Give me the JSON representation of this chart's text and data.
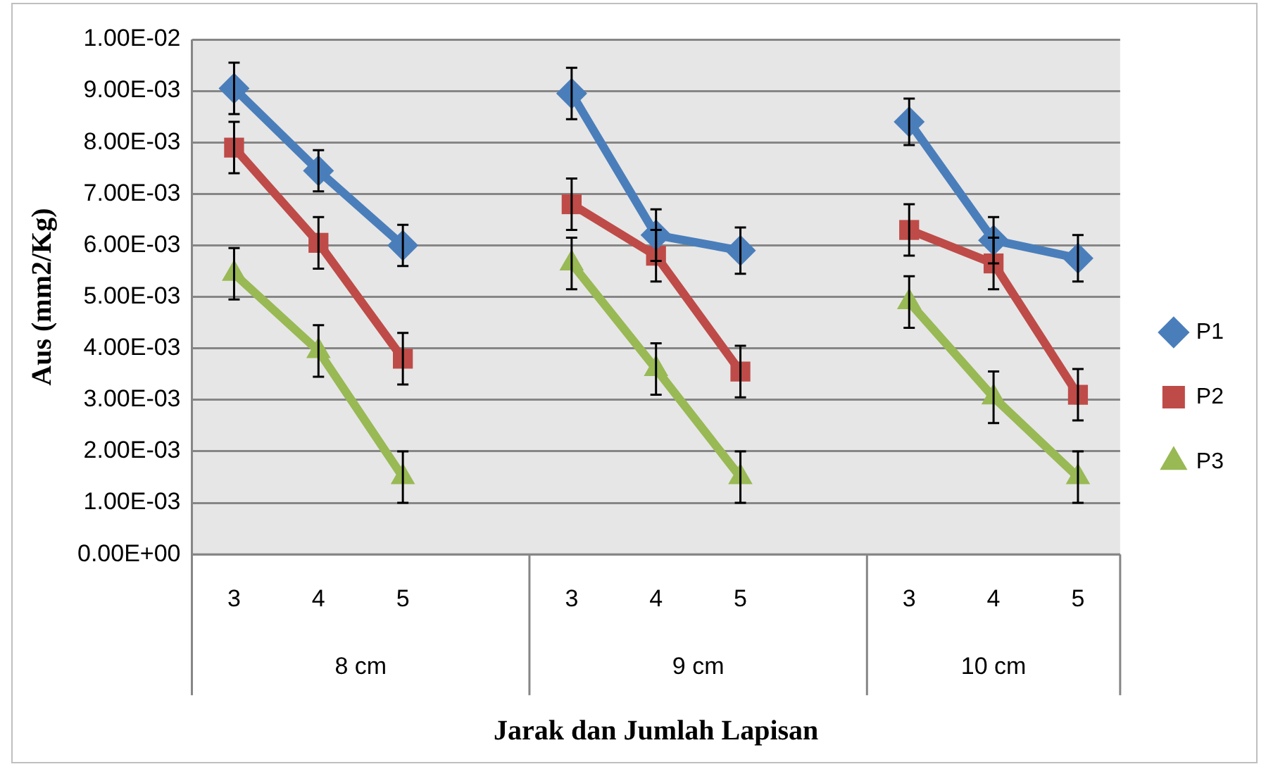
{
  "chart_data": {
    "type": "line",
    "xlabel": "Jarak dan Jumlah Lapisan",
    "ylabel": "Aus (mm2/Kg)",
    "categories": [
      "3",
      "4",
      "5",
      null,
      "3",
      "4",
      "5",
      null,
      "3",
      "4",
      "5"
    ],
    "annotations": [
      "8 cm",
      "9 cm",
      "10 cm"
    ],
    "series": [
      {
        "name": "P1",
        "color": "#4a7ebb",
        "marker": "diamond",
        "values": [
          0.00905,
          0.00745,
          0.006,
          null,
          0.00895,
          0.0062,
          0.0059,
          null,
          0.0084,
          0.0061,
          0.00575
        ],
        "errors": [
          0.0005,
          0.0004,
          0.0004,
          null,
          0.0005,
          0.0005,
          0.00045,
          null,
          0.00045,
          0.00045,
          0.00045
        ]
      },
      {
        "name": "P2",
        "color": "#be4b48",
        "marker": "square",
        "values": [
          0.0079,
          0.00605,
          0.0038,
          null,
          0.0068,
          0.0058,
          0.00355,
          null,
          0.0063,
          0.00565,
          0.0031
        ],
        "errors": [
          0.0005,
          0.0005,
          0.0005,
          null,
          0.0005,
          0.0005,
          0.0005,
          null,
          0.0005,
          0.0005,
          0.0005
        ]
      },
      {
        "name": "P3",
        "color": "#98b954",
        "marker": "triangle",
        "values": [
          0.00545,
          0.00395,
          0.0015,
          null,
          0.00565,
          0.0036,
          0.0015,
          null,
          0.0049,
          0.00305,
          0.0015
        ],
        "errors": [
          0.0005,
          0.0005,
          0.0005,
          null,
          0.0005,
          0.0005,
          0.0005,
          null,
          0.0005,
          0.0005,
          0.0005
        ]
      }
    ],
    "ylim": [
      0,
      0.01
    ],
    "yticks": [
      {
        "value": 0,
        "label": "0.00E+00"
      },
      {
        "value": 0.001,
        "label": "1.00E-03"
      },
      {
        "value": 0.002,
        "label": "2.00E-03"
      },
      {
        "value": 0.003,
        "label": "3.00E-03"
      },
      {
        "value": 0.004,
        "label": "4.00E-03"
      },
      {
        "value": 0.005,
        "label": "5.00E-03"
      },
      {
        "value": 0.006,
        "label": "6.00E-03"
      },
      {
        "value": 0.007,
        "label": "7.00E-03"
      },
      {
        "value": 0.008,
        "label": "8.00E-03"
      },
      {
        "value": 0.009,
        "label": "9.00E-03"
      },
      {
        "value": 0.01,
        "label": "1.00E-02"
      }
    ],
    "grid": "y",
    "legend": "right"
  }
}
